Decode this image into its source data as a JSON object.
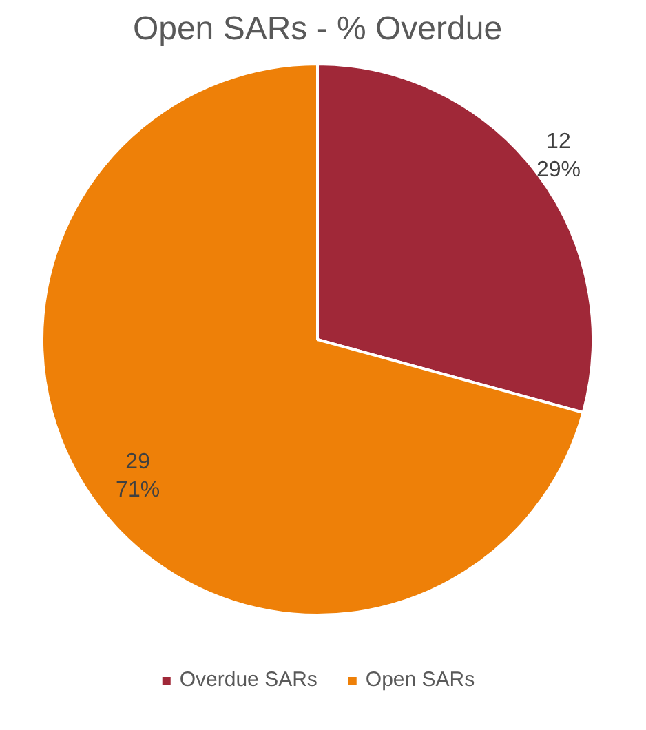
{
  "chart_data": {
    "type": "pie",
    "title": "Open SARs - % Overdue",
    "categories": [
      "Overdue SARs",
      "Open SARs"
    ],
    "values": [
      12,
      29
    ],
    "colors": [
      "#a02838",
      "#ee8008"
    ],
    "value_labels": [
      "12\n29%",
      "29\n71%"
    ],
    "legend": "bottom"
  }
}
